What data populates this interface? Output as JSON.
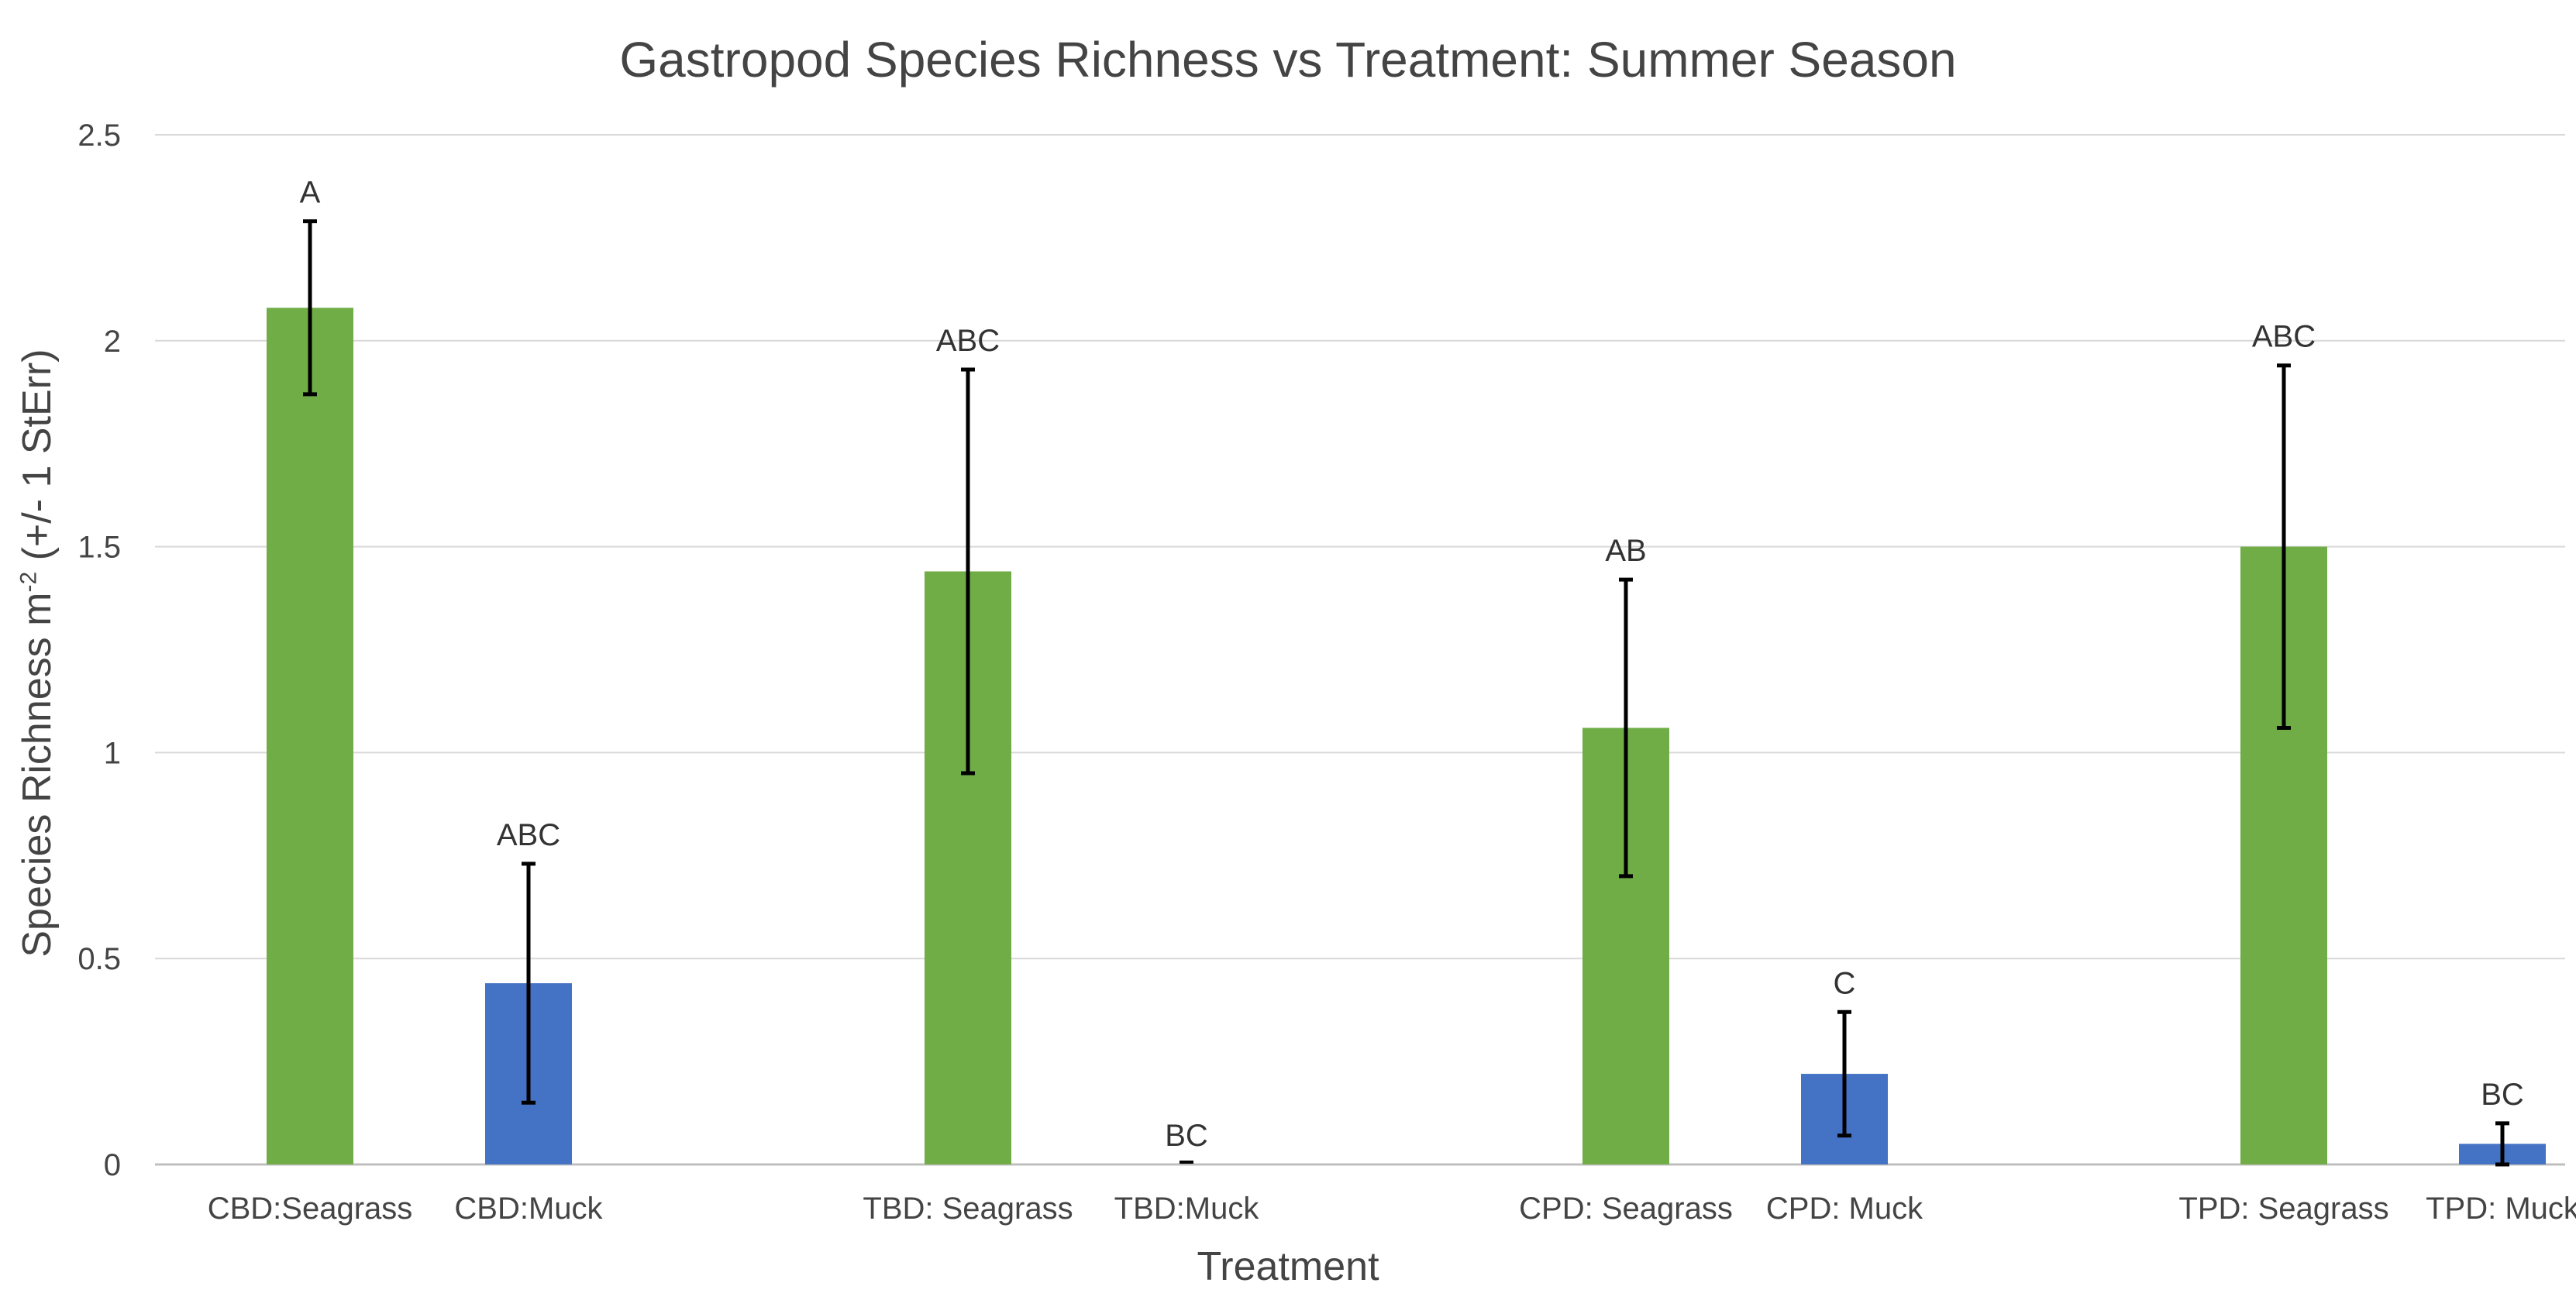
{
  "chart_data": {
    "type": "bar",
    "title": "Gastropod Species Richness vs Treatment: Summer Season",
    "xlabel": "Treatment",
    "ylabel_main": "Species Richness m",
    "ylabel_sup": "-2",
    "ylabel_tail": " (+/- 1 StErr)",
    "ylim": [
      0,
      2.5
    ],
    "yticks": [
      0,
      0.5,
      1,
      1.5,
      2,
      2.5
    ],
    "ytick_labels": [
      "0",
      "0.5",
      "1",
      "1.5",
      "2",
      "2.5"
    ],
    "grid": true,
    "categories": [
      "CBD:Seagrass",
      "CBD:Muck",
      "TBD: Seagrass",
      "TBD:Muck",
      "CPD: Seagrass",
      "CPD: Muck",
      "TPD: Seagrass",
      "TPD: Muck"
    ],
    "values": [
      2.08,
      0.44,
      1.44,
      0.0,
      1.06,
      0.22,
      1.5,
      0.05
    ],
    "errors": [
      0.21,
      0.29,
      0.49,
      0.0,
      0.36,
      0.15,
      0.44,
      0.05
    ],
    "significance_labels": [
      "A",
      "ABC",
      "ABC",
      "BC",
      "AB",
      "C",
      "ABC",
      "BC"
    ],
    "habitat": [
      "Seagrass",
      "Muck",
      "Seagrass",
      "Muck",
      "Seagrass",
      "Muck",
      "Seagrass",
      "Muck"
    ]
  },
  "colors": {
    "Seagrass": "#70AD47",
    "Muck": "#4472C4",
    "grid": "#D9D9D9",
    "axis": "#BFBFBF",
    "error_bar": "#000000"
  }
}
